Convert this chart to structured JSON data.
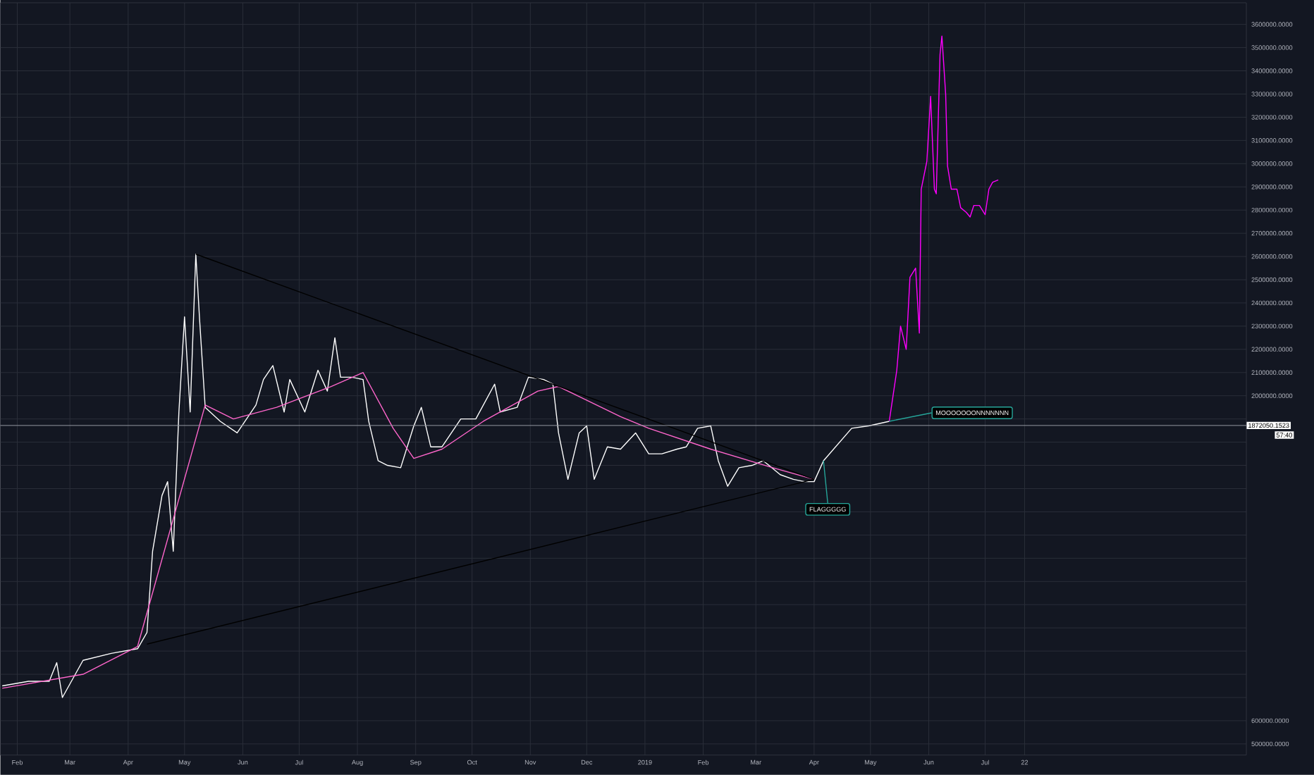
{
  "chart_data": {
    "type": "line",
    "xlim": [
      "2018-01-23",
      "2019-11-17"
    ],
    "ylim": [
      452000,
      3693000
    ],
    "xticks": [
      {
        "value": "2018-02-01",
        "label": "Feb"
      },
      {
        "value": "2018-03-01",
        "label": "Mar"
      },
      {
        "value": "2018-04-01",
        "label": "Apr"
      },
      {
        "value": "2018-05-01",
        "label": "May"
      },
      {
        "value": "2018-06-01",
        "label": "Jun"
      },
      {
        "value": "2018-07-01",
        "label": "Jul"
      },
      {
        "value": "2018-08-01",
        "label": "Aug"
      },
      {
        "value": "2018-09-01",
        "label": "Sep"
      },
      {
        "value": "2018-10-01",
        "label": "Oct"
      },
      {
        "value": "2018-11-01",
        "label": "Nov"
      },
      {
        "value": "2018-12-01",
        "label": "Dec"
      },
      {
        "value": "2019-01-01",
        "label": "2019"
      },
      {
        "value": "2019-02-01",
        "label": "Feb"
      },
      {
        "value": "2019-03-01",
        "label": "Mar"
      },
      {
        "value": "2019-04-01",
        "label": "Apr"
      },
      {
        "value": "2019-05-01",
        "label": "May"
      },
      {
        "value": "2019-06-01",
        "label": "Jun"
      },
      {
        "value": "2019-07-01",
        "label": "Jul"
      },
      {
        "value": "2019-07-22",
        "label": "22"
      }
    ],
    "yticks": [
      {
        "value": 500000,
        "label": "500000.0000"
      },
      {
        "value": 600000,
        "label": "600000.0000"
      },
      {
        "value": 700000,
        "label": null
      },
      {
        "value": 800000,
        "label": null
      },
      {
        "value": 900000,
        "label": null
      },
      {
        "value": 1000000,
        "label": null
      },
      {
        "value": 1100000,
        "label": null
      },
      {
        "value": 1200000,
        "label": null
      },
      {
        "value": 1300000,
        "label": null
      },
      {
        "value": 1400000,
        "label": null
      },
      {
        "value": 1500000,
        "label": null
      },
      {
        "value": 1600000,
        "label": null
      },
      {
        "value": 1700000,
        "label": null
      },
      {
        "value": 1800000,
        "label": null
      },
      {
        "value": 1900000,
        "label": null
      },
      {
        "value": 2000000,
        "label": "2000000.0000"
      },
      {
        "value": 2100000,
        "label": "2100000.0000"
      },
      {
        "value": 2200000,
        "label": "2200000.0000"
      },
      {
        "value": 2300000,
        "label": "2300000.0000"
      },
      {
        "value": 2400000,
        "label": "2400000.0000"
      },
      {
        "value": 2500000,
        "label": "2500000.0000"
      },
      {
        "value": 2600000,
        "label": "2600000.0000"
      },
      {
        "value": 2700000,
        "label": "2700000.0000"
      },
      {
        "value": 2800000,
        "label": "2800000.0000"
      },
      {
        "value": 2900000,
        "label": "2900000.0000"
      },
      {
        "value": 3000000,
        "label": "3000000.0000"
      },
      {
        "value": 3100000,
        "label": "3100000.0000"
      },
      {
        "value": 3200000,
        "label": "3200000.0000"
      },
      {
        "value": 3300000,
        "label": "3300000.0000"
      },
      {
        "value": 3400000,
        "label": "3400000.0000"
      },
      {
        "value": 3500000,
        "label": "3500000.0000"
      },
      {
        "value": 3600000,
        "label": "3600000.0000"
      }
    ],
    "grid": true,
    "series": [
      {
        "color": "#ffffff",
        "x": [
          "2018-01-24",
          "2018-02-07",
          "2018-02-18",
          "2018-02-22",
          "2018-02-25",
          "2018-03-08",
          "2018-03-23",
          "2018-04-06",
          "2018-04-11",
          "2018-04-14",
          "2018-04-19",
          "2018-04-22",
          "2018-04-25",
          "2018-04-28",
          "2018-05-01",
          "2018-05-04",
          "2018-05-07",
          "2018-05-09",
          "2018-05-12",
          "2018-05-20",
          "2018-05-29",
          "2018-06-08",
          "2018-06-12",
          "2018-06-17",
          "2018-06-23",
          "2018-06-26",
          "2018-07-04",
          "2018-07-11",
          "2018-07-16",
          "2018-07-20",
          "2018-07-23",
          "2018-07-29",
          "2018-08-04",
          "2018-08-07",
          "2018-08-12",
          "2018-08-17",
          "2018-08-24",
          "2018-08-31",
          "2018-09-04",
          "2018-09-09",
          "2018-09-15",
          "2018-09-25",
          "2018-10-03",
          "2018-10-13",
          "2018-10-16",
          "2018-10-25",
          "2018-10-31",
          "2018-11-08",
          "2018-11-13",
          "2018-11-16",
          "2018-11-21",
          "2018-11-27",
          "2018-12-01",
          "2018-12-05",
          "2018-12-12",
          "2018-12-19",
          "2018-12-27",
          "2019-01-03",
          "2019-01-10",
          "2019-01-18",
          "2019-01-23",
          "2019-01-29",
          "2019-02-05",
          "2019-02-09",
          "2019-02-14",
          "2019-02-20",
          "2019-02-27",
          "2019-03-05",
          "2019-03-14",
          "2019-03-21",
          "2019-03-27",
          "2019-04-01",
          "2019-04-06",
          "2019-04-21",
          "2019-04-30",
          "2019-05-11"
        ],
        "values": [
          750000,
          770000,
          770000,
          850000,
          700000,
          860000,
          890000,
          910000,
          980000,
          1330000,
          1570000,
          1630000,
          1330000,
          1930000,
          2340000,
          1930000,
          2610000,
          2330000,
          1950000,
          1890000,
          1840000,
          1960000,
          2070000,
          2130000,
          1930000,
          2070000,
          1930000,
          2110000,
          2020000,
          2250000,
          2080000,
          2080000,
          2070000,
          1890000,
          1720000,
          1700000,
          1690000,
          1870000,
          1950000,
          1780000,
          1780000,
          1900000,
          1900000,
          2050000,
          1930000,
          1950000,
          2080000,
          2070000,
          2050000,
          1840000,
          1640000,
          1840000,
          1870000,
          1640000,
          1780000,
          1770000,
          1840000,
          1750000,
          1750000,
          1770000,
          1780000,
          1860000,
          1870000,
          1720000,
          1610000,
          1690000,
          1700000,
          1720000,
          1660000,
          1640000,
          1630000,
          1630000,
          1720000,
          1860000,
          1870000,
          1890000
        ]
      },
      {
        "color": "#ff00ff",
        "x": [
          "2019-05-11",
          "2019-05-15",
          "2019-05-17",
          "2019-05-20",
          "2019-05-22",
          "2019-05-25",
          "2019-05-27",
          "2019-05-28",
          "2019-05-31",
          "2019-06-02",
          "2019-06-04",
          "2019-06-05",
          "2019-06-07",
          "2019-06-08",
          "2019-06-10",
          "2019-06-11",
          "2019-06-13",
          "2019-06-16",
          "2019-06-18",
          "2019-06-21",
          "2019-06-23",
          "2019-06-25",
          "2019-06-28",
          "2019-07-01",
          "2019-07-03",
          "2019-07-05",
          "2019-07-08"
        ],
        "values": [
          1890000,
          2110000,
          2300000,
          2200000,
          2510000,
          2550000,
          2270000,
          2890000,
          3010000,
          3290000,
          2890000,
          2870000,
          3470000,
          3550000,
          3300000,
          2990000,
          2890000,
          2890000,
          2810000,
          2790000,
          2770000,
          2820000,
          2820000,
          2780000,
          2890000,
          2920000,
          2930000
        ]
      },
      {
        "color": "#ff66cc",
        "x": [
          "2018-01-24",
          "2018-03-08",
          "2018-04-06",
          "2018-05-12",
          "2018-05-27",
          "2018-06-19",
          "2018-07-18",
          "2018-08-04",
          "2018-08-20",
          "2018-08-31",
          "2018-09-15",
          "2018-10-07",
          "2018-11-05",
          "2018-11-16",
          "2018-12-19",
          "2019-01-03",
          "2019-02-05",
          "2019-03-10",
          "2019-04-01"
        ],
        "values": [
          740000,
          800000,
          920000,
          1960000,
          1900000,
          1950000,
          2040000,
          2100000,
          1860000,
          1730000,
          1770000,
          1890000,
          2020000,
          2040000,
          1910000,
          1860000,
          1770000,
          1690000,
          1640000
        ]
      },
      {
        "color": "#000000",
        "x": [
          "2018-05-07",
          "2019-04-01"
        ],
        "values": [
          2610000,
          1640000
        ]
      },
      {
        "color": "#000000",
        "x": [
          "2018-04-11",
          "2019-04-01"
        ],
        "values": [
          930000,
          1640000
        ]
      }
    ],
    "ref_lines": [
      {
        "axis": "y",
        "value": 1872050.1523,
        "label": "1872050.1523",
        "color": "#9598a1"
      }
    ],
    "annotations": [
      {
        "text": "MOOOOOOONNNNNNN",
        "x": "2019-05-11",
        "y": 1890000
      },
      {
        "text": "FLAGGGGG",
        "x": "2019-04-06",
        "y": 1720000
      },
      "57:40"
    ]
  }
}
